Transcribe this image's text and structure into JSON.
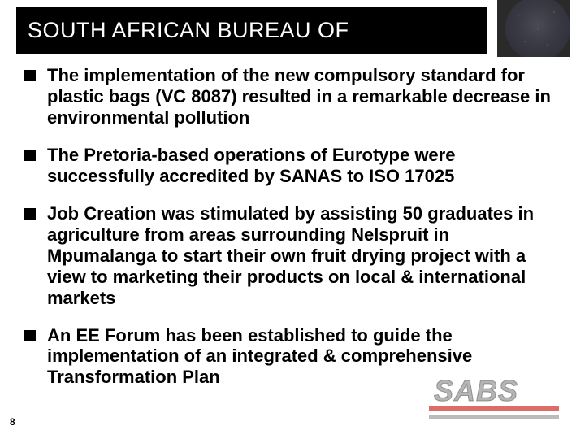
{
  "title": "SOUTH AFRICAN BUREAU OF",
  "page_number": "8",
  "logo": {
    "text": "SABS"
  },
  "colors": {
    "title_bg": "#000000",
    "title_fg": "#ffffff",
    "bullet_square": "#000000",
    "body_text": "#000000",
    "logo_red": "#c81e14",
    "logo_gray": "#787878",
    "background": "#ffffff"
  },
  "typography": {
    "title_fontsize_pt": 22,
    "body_fontsize_pt": 17,
    "body_weight": "bold",
    "font_family": "Arial"
  },
  "bullets": [
    {
      "lead": "The implementation of the new ",
      "bold1": "compulsory standard for plastic bags",
      "rest": " (VC 8087) resulted in a remarkable decrease in environmental pollution"
    },
    {
      "lead": "The ",
      "bold1": "Pretoria-based operations",
      "rest": " of Eurotype were successfully accredited by SANAS to ISO 17025"
    },
    {
      "bold1": "Job Creation",
      "rest": " was stimulated by assisting 50 graduates in agriculture from areas surrounding Nelspruit in Mpumalanga to start their own fruit drying project with a view to marketing their products on local & international markets"
    },
    {
      "lead": "An ",
      "bold1": "EE Forum",
      "rest": " has been established to guide the implementation of an integrated & comprehensive Transformation Plan"
    }
  ]
}
